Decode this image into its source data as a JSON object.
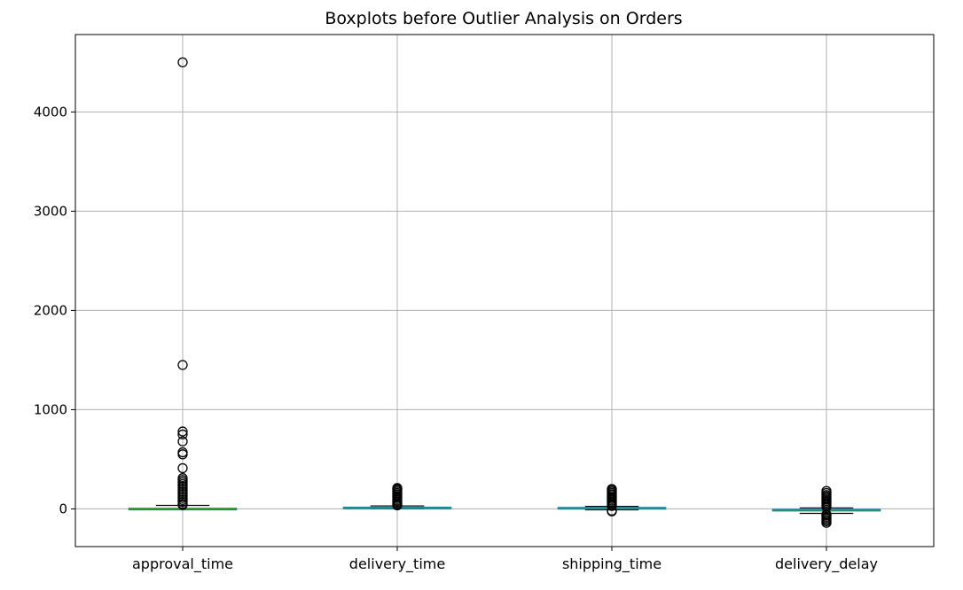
{
  "chart_data": {
    "type": "box",
    "title": "Boxplots before Outlier Analysis on Orders",
    "xlabel": "",
    "ylabel": "",
    "categories": [
      "approval_time",
      "delivery_time",
      "shipping_time",
      "delivery_delay"
    ],
    "ylim": [
      -380,
      4780
    ],
    "yticks": [
      0,
      1000,
      2000,
      3000,
      4000
    ],
    "grid": true,
    "boxes": [
      {
        "category": "approval_time",
        "whisker_low": 0,
        "q1": 0,
        "median": 0,
        "q3": 5,
        "whisker_high": 35,
        "outliers": [
          4500,
          1450,
          780,
          750,
          680,
          570,
          550,
          410,
          310,
          290,
          270,
          250,
          230,
          210,
          190,
          170,
          150,
          130,
          110,
          90,
          70,
          50,
          40
        ]
      },
      {
        "category": "delivery_time",
        "whisker_low": 1,
        "q1": 7,
        "median": 10,
        "q3": 16,
        "whisker_high": 30,
        "outliers": [
          35,
          45,
          55,
          70,
          85,
          100,
          115,
          130,
          145,
          160,
          175,
          190,
          200,
          210
        ]
      },
      {
        "category": "shipping_time",
        "whisker_low": -10,
        "q1": 3,
        "median": 7,
        "q3": 13,
        "whisker_high": 25,
        "outliers": [
          -25,
          -18,
          30,
          40,
          55,
          70,
          85,
          100,
          115,
          130,
          145,
          160,
          175,
          190,
          200
        ]
      },
      {
        "category": "delivery_delay",
        "whisker_low": -45,
        "q1": -17,
        "median": -12,
        "q3": -6,
        "whisker_high": 10,
        "outliers": [
          -140,
          -125,
          -110,
          -95,
          -80,
          -65,
          -55,
          20,
          35,
          50,
          65,
          80,
          95,
          110,
          125,
          140,
          160,
          180
        ]
      }
    ],
    "colors": {
      "box": "#1f77b4",
      "median": "#2ca02c",
      "whisker": "#000000",
      "outlier": "#000000",
      "grid": "#b0b0b0",
      "axes": "#000000"
    }
  }
}
